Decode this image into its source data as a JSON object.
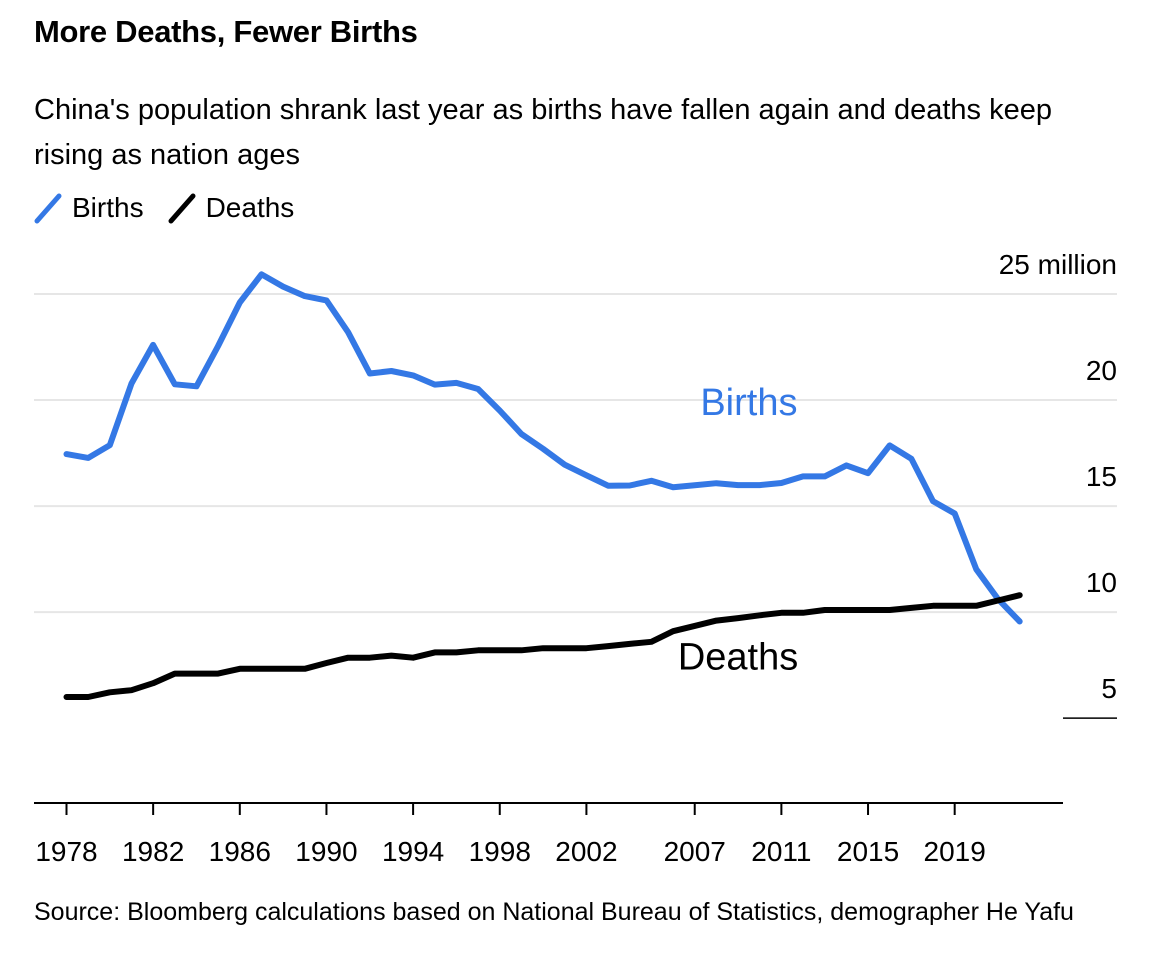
{
  "header": {
    "title": "More Deaths, Fewer Births",
    "subtitle": "China's population shrank last year as births have fallen again and deaths keep rising as nation ages"
  },
  "legend": [
    {
      "label": "Births",
      "color": "#3478e5"
    },
    {
      "label": "Deaths",
      "color": "#000000"
    }
  ],
  "footer": {
    "source": "Source: Bloomberg calculations based on National Bureau of Statistics, demographer He Yafu"
  },
  "chart_data": {
    "type": "line",
    "title": "More Deaths, Fewer Births",
    "xlabel": "",
    "ylabel": "",
    "ylim": [
      1,
      25
    ],
    "y_ticks": [
      {
        "value": 25,
        "label": "25 million"
      },
      {
        "value": 20,
        "label": "20"
      },
      {
        "value": 15,
        "label": "15"
      },
      {
        "value": 10,
        "label": "10"
      },
      {
        "value": 5,
        "label": "5"
      }
    ],
    "x_ticks": [
      1978,
      1982,
      1986,
      1990,
      1994,
      1998,
      2002,
      2007,
      2011,
      2015,
      2019
    ],
    "x_range": [
      1976.5,
      2024
    ],
    "grid": true,
    "annotations": [
      {
        "text": "Births",
        "series": "Births",
        "x": 2009.5,
        "y": 19.3,
        "color": "#3478e5"
      },
      {
        "text": "Deaths",
        "series": "Deaths",
        "x": 2009,
        "y": 7.3,
        "color": "#000000"
      }
    ],
    "x": [
      1978,
      1979,
      1980,
      1981,
      1982,
      1983,
      1984,
      1985,
      1986,
      1987,
      1988,
      1989,
      1990,
      1991,
      1992,
      1993,
      1994,
      1995,
      1996,
      1997,
      1998,
      1999,
      2000,
      2001,
      2002,
      2003,
      2004,
      2005,
      2006,
      2007,
      2008,
      2009,
      2010,
      2011,
      2012,
      2013,
      2014,
      2015,
      2016,
      2017,
      2018,
      2019,
      2020,
      2021,
      2022
    ],
    "series": [
      {
        "name": "Births",
        "color": "#3478e5",
        "values": [
          17.45,
          17.27,
          17.87,
          20.78,
          22.6,
          20.74,
          20.65,
          22.55,
          24.6,
          25.93,
          25.35,
          24.9,
          24.7,
          23.2,
          21.25,
          21.37,
          21.16,
          20.73,
          20.81,
          20.52,
          19.5,
          18.4,
          17.7,
          16.95,
          16.45,
          15.96,
          15.97,
          16.19,
          15.89,
          15.98,
          16.08,
          15.99,
          15.99,
          16.09,
          16.4,
          16.4,
          16.92,
          16.55,
          17.86,
          17.23,
          15.23,
          14.65,
          12.02,
          10.62,
          9.56
        ]
      },
      {
        "name": "Deaths",
        "color": "#000000",
        "values": [
          6.0,
          6.0,
          6.22,
          6.32,
          6.65,
          7.1,
          7.1,
          7.1,
          7.33,
          7.33,
          7.33,
          7.33,
          7.6,
          7.85,
          7.85,
          7.95,
          7.85,
          8.1,
          8.1,
          8.2,
          8.2,
          8.2,
          8.3,
          8.3,
          8.3,
          8.4,
          8.5,
          8.6,
          9.1,
          9.35,
          9.6,
          9.72,
          9.85,
          9.97,
          9.97,
          10.1,
          10.1,
          10.1,
          10.1,
          10.2,
          10.3,
          10.3,
          10.3,
          10.55,
          10.8
        ]
      }
    ]
  }
}
